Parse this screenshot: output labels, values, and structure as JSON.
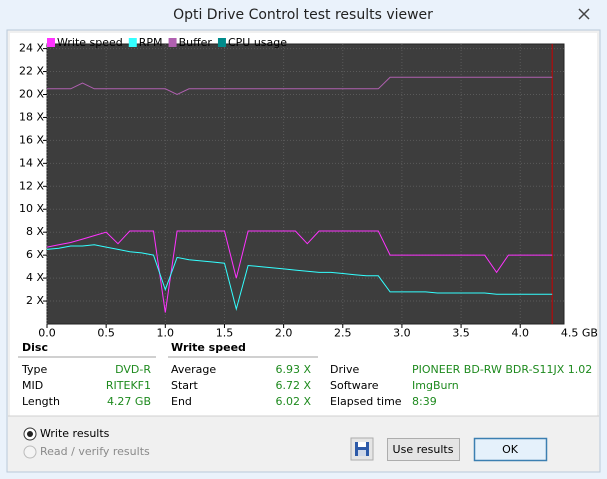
{
  "window": {
    "title": "Opti Drive Control test results viewer"
  },
  "chart_data": {
    "type": "line",
    "x": [
      0,
      0.1,
      0.2,
      0.3,
      0.4,
      0.5,
      0.6,
      0.7,
      0.8,
      0.9,
      1.0,
      1.1,
      1.2,
      1.3,
      1.4,
      1.5,
      1.6,
      1.7,
      1.8,
      1.9,
      2.0,
      2.1,
      2.2,
      2.3,
      2.4,
      2.5,
      2.6,
      2.7,
      2.8,
      2.9,
      3.0,
      3.1,
      3.2,
      3.3,
      3.4,
      3.5,
      3.6,
      3.7,
      3.8,
      3.9,
      4.0,
      4.1,
      4.2,
      4.27
    ],
    "series": [
      {
        "name": "Write speed",
        "color": "#ff33ff",
        "values": [
          6.7,
          6.9,
          7.1,
          7.4,
          7.7,
          8.0,
          7.0,
          8.1,
          8.1,
          8.1,
          1.0,
          8.1,
          8.1,
          8.1,
          8.1,
          8.1,
          4.0,
          8.1,
          8.1,
          8.1,
          8.1,
          8.1,
          7.0,
          8.1,
          8.1,
          8.1,
          8.1,
          8.1,
          8.1,
          6.0,
          6.0,
          6.0,
          6.0,
          6.0,
          6.0,
          6.0,
          6.0,
          6.0,
          4.5,
          6.0,
          6.0,
          6.0,
          6.0,
          6.0
        ]
      },
      {
        "name": "RPM",
        "color": "#33ffff",
        "values": [
          6.5,
          6.6,
          6.8,
          6.8,
          6.9,
          6.7,
          6.5,
          6.3,
          6.2,
          6.0,
          3.0,
          5.8,
          5.6,
          5.5,
          5.4,
          5.3,
          1.3,
          5.1,
          5.0,
          4.9,
          4.8,
          4.7,
          4.6,
          4.5,
          4.5,
          4.4,
          4.3,
          4.2,
          4.2,
          2.8,
          2.8,
          2.8,
          2.8,
          2.7,
          2.7,
          2.7,
          2.7,
          2.7,
          2.6,
          2.6,
          2.6,
          2.6,
          2.6,
          2.6
        ]
      },
      {
        "name": "Buffer",
        "color": "#b060b0",
        "values": [
          20.5,
          20.5,
          20.5,
          21.0,
          20.5,
          20.5,
          20.5,
          20.5,
          20.5,
          20.5,
          20.5,
          20.0,
          20.5,
          20.5,
          20.5,
          20.5,
          20.5,
          20.5,
          20.5,
          20.5,
          20.5,
          20.5,
          20.5,
          20.5,
          20.5,
          20.5,
          20.5,
          20.5,
          20.5,
          21.5,
          21.5,
          21.5,
          21.5,
          21.5,
          21.5,
          21.5,
          21.5,
          21.5,
          21.5,
          21.5,
          21.5,
          21.5,
          21.5,
          21.5
        ]
      },
      {
        "name": "CPU usage",
        "color": "#008b8b",
        "values": [
          null,
          null,
          null,
          null,
          null,
          null,
          null,
          null,
          null,
          null,
          null,
          null,
          null,
          null,
          null,
          null,
          null,
          null,
          null,
          null,
          null,
          null,
          null,
          null,
          null,
          null,
          null,
          null,
          null,
          null,
          null,
          null,
          null,
          null,
          null,
          null,
          null,
          null,
          null,
          null,
          null,
          null,
          null,
          null
        ]
      }
    ],
    "xlim": [
      0,
      4.37
    ],
    "ylim": [
      0,
      24.4
    ],
    "xticks": [
      {
        "value": 0,
        "label": "0.0"
      },
      0.5,
      {
        "value": 1,
        "label": "1.0"
      },
      1.5,
      {
        "value": 2,
        "label": "2.0"
      },
      2.5,
      {
        "value": 3,
        "label": "3.0"
      },
      3.5,
      {
        "value": 4,
        "label": "4.0"
      },
      {
        "value": 4.5,
        "label": "4.5 GB"
      }
    ],
    "yticks": [
      {
        "value": 2,
        "label": "2 X"
      },
      {
        "value": 4,
        "label": "4 X"
      },
      {
        "value": 6,
        "label": "6 X"
      },
      {
        "value": 8,
        "label": "8 X"
      },
      {
        "value": 10,
        "label": "10 X"
      },
      {
        "value": 12,
        "label": "12 X"
      },
      {
        "value": 14,
        "label": "14 X"
      },
      {
        "value": 16,
        "label": "16 X"
      },
      {
        "value": 18,
        "label": "18 X"
      },
      {
        "value": 20,
        "label": "20 X"
      },
      {
        "value": 22,
        "label": "22 X"
      },
      {
        "value": 24,
        "label": "24 X"
      }
    ],
    "grid": true,
    "end_marker": 4.27,
    "end_marker_color": "#cc0000"
  },
  "disc": {
    "heading": "Disc",
    "rows": [
      {
        "label": "Type",
        "value": "DVD-R"
      },
      {
        "label": "MID",
        "value": "RITEKF1"
      },
      {
        "label": "Length",
        "value": "4.27 GB"
      }
    ]
  },
  "write_speed": {
    "heading": "Write speed",
    "rows": [
      {
        "label": "Average",
        "value": "6.93 X"
      },
      {
        "label": "Start",
        "value": "6.72 X"
      },
      {
        "label": "End",
        "value": "6.02 X"
      }
    ]
  },
  "drive_info": {
    "rows": [
      {
        "label": "Drive",
        "value": "PIONEER  BD-RW  BDR-S11JX 1.02"
      },
      {
        "label": "Software",
        "value": "ImgBurn"
      },
      {
        "label": "Elapsed time",
        "value": "8:39"
      }
    ]
  },
  "options": [
    {
      "label": "Write results",
      "checked": true
    },
    {
      "label": "Read / verify results",
      "checked": false
    }
  ],
  "buttons": {
    "use": "Use results",
    "ok": "OK"
  }
}
